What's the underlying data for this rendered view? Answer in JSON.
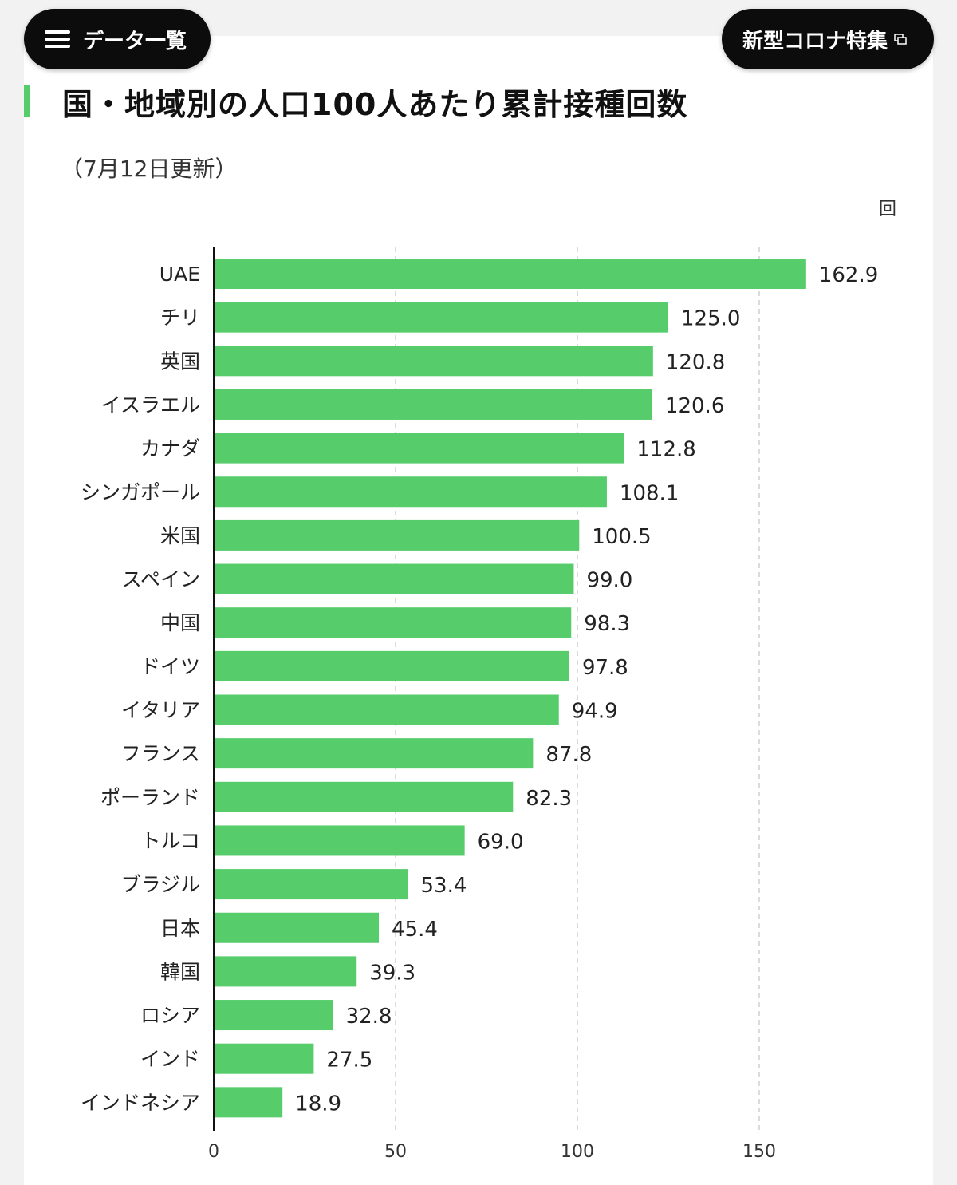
{
  "nav": {
    "menu_label": "データ一覧",
    "feature_label": "新型コロナ特集"
  },
  "chart_data": {
    "type": "bar",
    "orientation": "horizontal",
    "title": "国・地域別の人口100人あたり累計接種回数",
    "subtitle": "（7月12日更新）",
    "unit": "回",
    "categories": [
      "UAE",
      "チリ",
      "英国",
      "イスラエル",
      "カナダ",
      "シンガポール",
      "米国",
      "スペイン",
      "中国",
      "ドイツ",
      "イタリア",
      "フランス",
      "ポーランド",
      "トルコ",
      "ブラジル",
      "日本",
      "韓国",
      "ロシア",
      "インド",
      "インドネシア"
    ],
    "values": [
      162.9,
      125.0,
      120.8,
      120.6,
      112.8,
      108.1,
      100.5,
      99.0,
      98.3,
      97.8,
      94.9,
      87.8,
      82.3,
      69.0,
      53.4,
      45.4,
      39.3,
      32.8,
      27.5,
      18.9
    ],
    "value_labels": [
      "162.9",
      "125.0",
      "120.8",
      "120.6",
      "112.8",
      "108.1",
      "100.5",
      "99.0",
      "98.3",
      "97.8",
      "94.9",
      "87.8",
      "82.3",
      "69.0",
      "53.4",
      "45.4",
      "39.3",
      "32.8",
      "27.5",
      "18.9"
    ],
    "xlim": [
      0,
      150
    ],
    "xticks": [
      0,
      50,
      100,
      150
    ],
    "xtick_labels": [
      "0",
      "50",
      "100",
      "150"
    ],
    "grid": true,
    "bar_color": "#56cc6b"
  },
  "colors": {
    "accent": "#56cc6b",
    "pill": "#0c0c0c"
  },
  "icons": {
    "menu": "hamburger-icon",
    "external": "external-window-icon"
  }
}
